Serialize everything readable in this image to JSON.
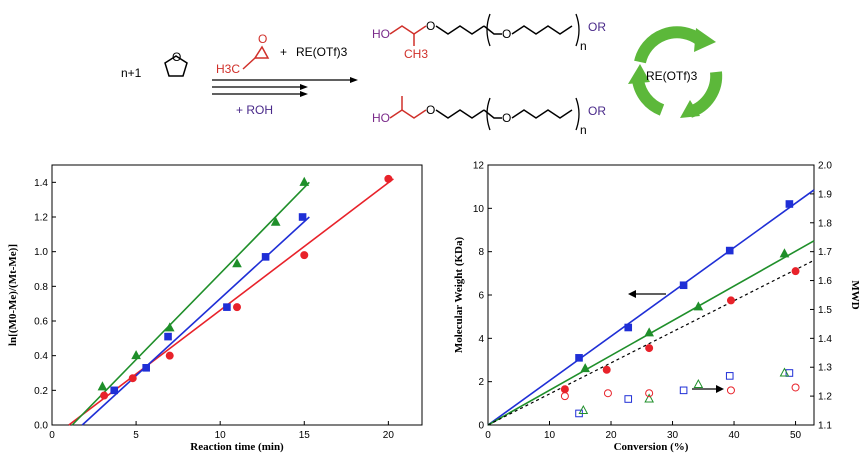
{
  "scheme": {
    "reactant_coeff": "n+1",
    "epoxide_label": "H3C",
    "plus1": "+",
    "catalyst": "RE(OTf)3",
    "plus_roh": "+ ROH",
    "product1": {
      "left": "HO",
      "sub": "CH3",
      "end": "OR",
      "n": "n"
    },
    "product2": {
      "left": "HO",
      "end": "OR",
      "n": "n"
    },
    "recycle_label": "RE(OTf)3"
  },
  "colors": {
    "red": "#e8222a",
    "blue": "#1f2fd6",
    "green": "#1f8f2a",
    "epoxide": "#d0302a",
    "purple": "#4a2a8a",
    "recycle": "#5cb83a"
  },
  "chart_data": [
    {
      "type": "scatter",
      "title": "",
      "xlabel": "Reaction time (min)",
      "ylabel": "ln[(M0-Me)/(Mt-Me)]",
      "xlim": [
        0,
        22
      ],
      "ylim": [
        0,
        1.5
      ],
      "xticks": [
        "0",
        "5",
        "10",
        "15",
        "20"
      ],
      "yticks": [
        "0.0",
        "0.2",
        "0.4",
        "0.6",
        "0.8",
        "1.0",
        "1.2",
        "1.4"
      ],
      "series": [
        {
          "color": "red",
          "marker": "circle",
          "x": [
            3.1,
            4.8,
            7.0,
            11.0,
            15.0,
            20.0
          ],
          "y": [
            0.17,
            0.27,
            0.4,
            0.68,
            0.98,
            1.42
          ],
          "fit": [
            [
              1.0,
              0
            ],
            [
              20.3,
              1.42
            ]
          ]
        },
        {
          "color": "blue",
          "marker": "square",
          "x": [
            3.7,
            5.6,
            6.9,
            10.4,
            12.7,
            14.9
          ],
          "y": [
            0.2,
            0.33,
            0.51,
            0.68,
            0.97,
            1.2
          ],
          "fit": [
            [
              1.8,
              0
            ],
            [
              15.3,
              1.2
            ]
          ]
        },
        {
          "color": "green",
          "marker": "triangle",
          "x": [
            3.0,
            5.0,
            7.0,
            11.0,
            13.3,
            15.0
          ],
          "y": [
            0.22,
            0.4,
            0.56,
            0.93,
            1.17,
            1.4
          ],
          "fit": [
            [
              1.2,
              0
            ],
            [
              15.3,
              1.4
            ]
          ]
        }
      ]
    },
    {
      "type": "scatter",
      "title": "",
      "xlabel": "Conversion (%)",
      "ylabel": "Molecular Weight (KDa)",
      "y2label": "MWD",
      "xlim": [
        0,
        53
      ],
      "ylim": [
        0,
        12
      ],
      "y2lim": [
        1.1,
        2.0
      ],
      "xticks": [
        "0",
        "10",
        "20",
        "30",
        "40",
        "50"
      ],
      "yticks": [
        "0",
        "2",
        "4",
        "6",
        "8",
        "10",
        "12"
      ],
      "y2ticks": [
        "1.1",
        "1.2",
        "1.3",
        "1.4",
        "1.5",
        "1.6",
        "1.7",
        "1.8",
        "1.9",
        "2.0"
      ],
      "mw_series": [
        {
          "color": "blue",
          "marker": "square",
          "x": [
            14.8,
            22.8,
            31.8,
            39.3,
            49.0
          ],
          "y": [
            3.1,
            4.5,
            6.45,
            8.05,
            10.2
          ],
          "fit": [
            [
              0,
              0
            ],
            [
              53,
              10.85
            ]
          ],
          "dash": false
        },
        {
          "color": "green",
          "marker": "triangle",
          "x": [
            15.8,
            26.2,
            34.2,
            48.2
          ],
          "y": [
            2.6,
            4.25,
            5.45,
            7.9
          ],
          "fit": [
            [
              0,
              0
            ],
            [
              53,
              8.5
            ]
          ],
          "dash": false
        },
        {
          "color": "red",
          "marker": "circle",
          "x": [
            12.5,
            19.3,
            26.2,
            39.5,
            50.0
          ],
          "y": [
            1.65,
            2.55,
            3.55,
            5.75,
            7.1
          ],
          "fit": [
            [
              0,
              0
            ],
            [
              53,
              7.6
            ]
          ],
          "dash": true
        }
      ],
      "mwd_series": [
        {
          "color": "blue",
          "marker": "square",
          "x": [
            14.8,
            22.8,
            31.8,
            39.3,
            49.0
          ],
          "y": [
            1.14,
            1.19,
            1.22,
            1.27,
            1.28
          ]
        },
        {
          "color": "green",
          "marker": "triangle",
          "x": [
            15.5,
            26.2,
            34.2,
            48.2
          ],
          "y": [
            1.15,
            1.19,
            1.24,
            1.28
          ]
        },
        {
          "color": "red",
          "marker": "circle",
          "x": [
            12.5,
            19.5,
            26.2,
            39.5,
            50.0
          ],
          "y": [
            1.2,
            1.21,
            1.21,
            1.22,
            1.23
          ]
        }
      ],
      "arrows": [
        {
          "direction": "left",
          "points_to": "Molecular Weight (KDa)"
        },
        {
          "direction": "right",
          "points_to": "MWD"
        }
      ]
    }
  ]
}
